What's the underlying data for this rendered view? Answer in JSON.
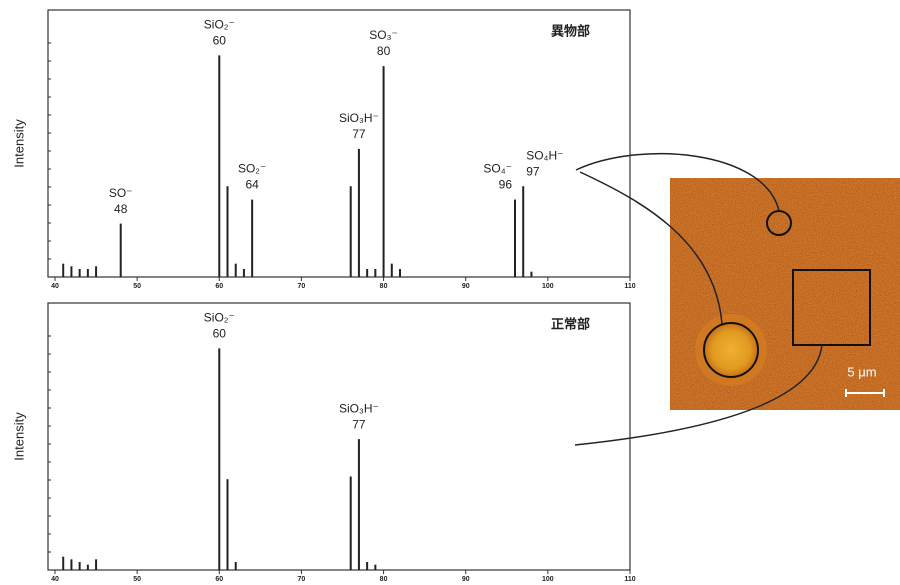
{
  "chart_data": [
    {
      "type": "bar",
      "label": "異物部",
      "ylabel": "Intensity",
      "color": "#222",
      "x": [
        41,
        42,
        43,
        44,
        45,
        48,
        60,
        61,
        62,
        63,
        64,
        76,
        77,
        78,
        79,
        80,
        81,
        82,
        96,
        97,
        98
      ],
      "values": [
        5,
        4,
        3,
        3,
        4,
        20,
        83,
        34,
        5,
        3,
        29,
        34,
        48,
        3,
        3,
        79,
        5,
        3,
        29,
        34,
        2
      ],
      "xlim": [
        40,
        110
      ],
      "ylim": [
        0,
        100
      ],
      "xticks": [
        40,
        50,
        60,
        70,
        80,
        90,
        100,
        110
      ],
      "annotations": [
        {
          "x": 48,
          "label": "SO⁻"
        },
        {
          "x": 60,
          "label": "SiO₂⁻"
        },
        {
          "x": 64,
          "label": "SO₂⁻"
        },
        {
          "x": 77,
          "label": "SiO₃H⁻"
        },
        {
          "x": 80,
          "label": "SO₃⁻"
        },
        {
          "x": 96,
          "label": "SO₄⁻"
        },
        {
          "x": 97,
          "label": "SO₄H⁻"
        }
      ]
    },
    {
      "type": "bar",
      "label": "正常部",
      "ylabel": "Intensity",
      "color": "#222",
      "x": [
        41,
        42,
        43,
        44,
        45,
        60,
        61,
        62,
        76,
        77,
        78,
        79
      ],
      "values": [
        5,
        4,
        3,
        2,
        4,
        83,
        34,
        3,
        35,
        49,
        3,
        2
      ],
      "xlim": [
        40,
        110
      ],
      "ylim": [
        0,
        100
      ],
      "xticks": [
        40,
        50,
        60,
        70,
        80,
        90,
        100,
        110
      ],
      "annotations": [
        {
          "x": 60,
          "label": "SiO₂⁻"
        },
        {
          "x": 77,
          "label": "SiO₃H⁻"
        }
      ]
    }
  ],
  "image": {
    "scale_label": "5 μm"
  }
}
